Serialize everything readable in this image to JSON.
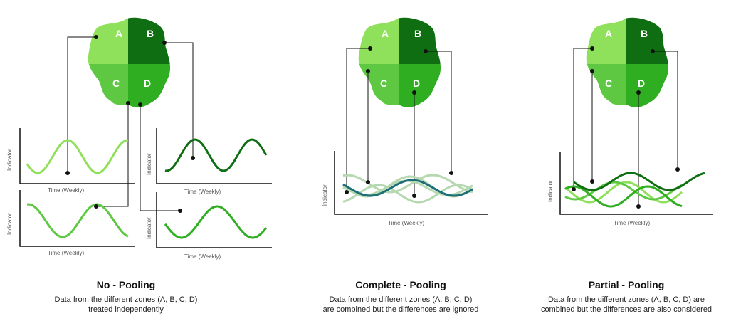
{
  "zones": [
    "A",
    "B",
    "C",
    "D"
  ],
  "axis": {
    "y_label": "Indicator",
    "x_label": "Time (Weekly)"
  },
  "panels": {
    "no_pooling": {
      "title": "No - Pooling",
      "desc": [
        "Data from the different zones (A, B, C, D)",
        "treated independently"
      ]
    },
    "complete_pooling": {
      "title": "Complete - Pooling",
      "desc": [
        "Data from the different zones (A, B, C, D)",
        "are combined but the differences are ignored"
      ]
    },
    "partial_pooling": {
      "title": "Partial - Pooling",
      "desc": [
        "Data from the different zones (A, B, C, D) are",
        "combined but the differences are also considered"
      ]
    }
  },
  "colors": {
    "A": "#8fe05a",
    "B": "#0f6e12",
    "C": "#5ec843",
    "D": "#2fae22",
    "pooled": "#1c6f78",
    "pooled_faint": "#b6d8b0",
    "outline": "#111111"
  }
}
